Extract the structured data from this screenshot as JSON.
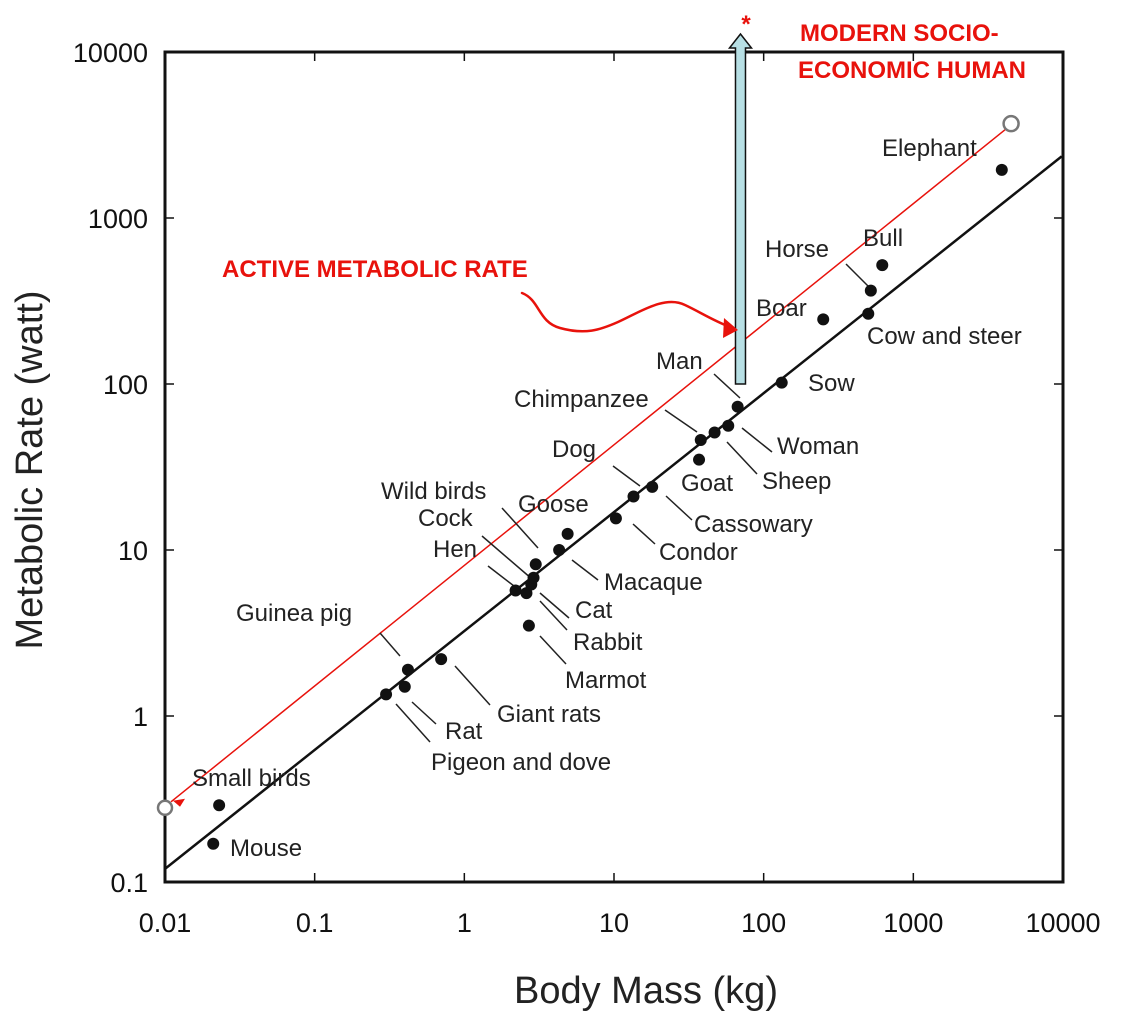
{
  "chart_data": {
    "type": "scatter",
    "xlabel": "Body Mass (kg)",
    "ylabel": "Metabolic Rate (watt)",
    "xscale": "log",
    "yscale": "log",
    "xlim": [
      0.01,
      10000
    ],
    "ylim": [
      0.1,
      10000
    ],
    "xticks": [
      {
        "value": 0.01,
        "label": "0.01"
      },
      {
        "value": 0.1,
        "label": "0.1"
      },
      {
        "value": 1,
        "label": "1"
      },
      {
        "value": 10,
        "label": "10"
      },
      {
        "value": 100,
        "label": "100"
      },
      {
        "value": 1000,
        "label": "1000"
      },
      {
        "value": 10000,
        "label": "10000"
      }
    ],
    "yticks": [
      {
        "value": 0.1,
        "label": "0.1"
      },
      {
        "value": 1,
        "label": "1"
      },
      {
        "value": 10,
        "label": "10"
      },
      {
        "value": 100,
        "label": "100"
      },
      {
        "value": 1000,
        "label": "1000"
      },
      {
        "value": 10000,
        "label": "10000"
      }
    ],
    "points": [
      {
        "label": "Mouse",
        "x": 0.021,
        "y": 0.17
      },
      {
        "label": "Small birds",
        "x": 0.023,
        "y": 0.29
      },
      {
        "label": "Pigeon and dove",
        "x": 0.3,
        "y": 1.35
      },
      {
        "label": "Rat",
        "x": 0.4,
        "y": 1.5
      },
      {
        "label": "Guinea pig",
        "x": 0.42,
        "y": 1.9
      },
      {
        "label": "Giant rats",
        "x": 0.7,
        "y": 2.2
      },
      {
        "label": "Hen",
        "x": 2.2,
        "y": 5.7
      },
      {
        "label": "Cat",
        "x": 2.6,
        "y": 5.5
      },
      {
        "label": "Rabbit",
        "x": 2.8,
        "y": 6.2
      },
      {
        "label": "Cock",
        "x": 2.9,
        "y": 6.8
      },
      {
        "label": "Wild birds",
        "x": 3.0,
        "y": 8.2
      },
      {
        "label": "Marmot",
        "x": 2.7,
        "y": 3.5
      },
      {
        "label": "Macaque",
        "x": 4.3,
        "y": 10
      },
      {
        "label": "Goose",
        "x": 4.9,
        "y": 12.5
      },
      {
        "label": "Condor",
        "x": 10.3,
        "y": 15.5
      },
      {
        "label": "Cassowary",
        "x": 13.5,
        "y": 21
      },
      {
        "label": "Dog",
        "x": 18,
        "y": 24
      },
      {
        "label": "Goat",
        "x": 37,
        "y": 35
      },
      {
        "label": "Chimpanzee",
        "x": 38,
        "y": 46
      },
      {
        "label": "Sheep",
        "x": 47,
        "y": 51
      },
      {
        "label": "Woman",
        "x": 58,
        "y": 56
      },
      {
        "label": "Man",
        "x": 67,
        "y": 73
      },
      {
        "label": "Sow",
        "x": 132,
        "y": 102
      },
      {
        "label": "Boar",
        "x": 250,
        "y": 245
      },
      {
        "label": "Cow and steer",
        "x": 500,
        "y": 265
      },
      {
        "label": "Horse",
        "x": 520,
        "y": 365
      },
      {
        "label": "Bull",
        "x": 620,
        "y": 520
      },
      {
        "label": "Elephant",
        "x": 3900,
        "y": 1950
      }
    ],
    "fit_line": {
      "x": [
        0.01,
        9800
      ],
      "y": [
        0.12,
        2350
      ]
    },
    "active_metabolic_line": {
      "x": [
        0.01,
        4500
      ],
      "y": [
        0.28,
        3700
      ]
    },
    "arrow": {
      "x": 70,
      "y_from": 100,
      "y_to": 10000
    },
    "annotations": [
      {
        "text": "ACTIVE METABOLIC RATE",
        "color": "#e8120c"
      },
      {
        "text": "MODERN SOCIO-",
        "color": "#e8120c"
      },
      {
        "text": "ECONOMIC HUMAN",
        "color": "#e8120c"
      },
      {
        "text": "*",
        "color": "#e8120c"
      }
    ],
    "colors": {
      "axis": "#111111",
      "points": "#111111",
      "fit_line": "#111111",
      "active_line": "#e8120c",
      "arrow_fill": "#b7dfe4",
      "annotation": "#e8120c"
    }
  }
}
